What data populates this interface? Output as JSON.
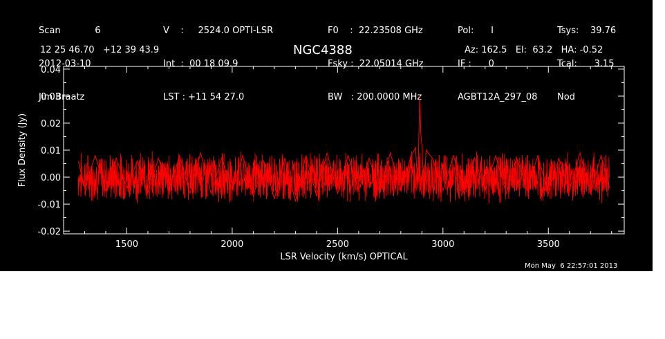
{
  "header": {
    "col1": [
      "Scan            6",
      "2012-03-10",
      "Jim Braatz"
    ],
    "col2": [
      "V    :     2524.0 OPTI-LSR",
      "Int  :  00 18 09.9",
      "LST : +11 54 27.0"
    ],
    "col3": [
      "F0    :  22.23508 GHz",
      "Fsky :  22.05014 GHz",
      "BW   : 200.0000 MHz"
    ],
    "col4": [
      "Pol:      I",
      "IF :      0",
      "AGBT12A_297_08"
    ],
    "col5": [
      "Tsys:    39.76",
      "Tcal:      3.15",
      "Nod"
    ]
  },
  "source": "NGC4388",
  "coords": "12 25 46.70   +12 39 43.9",
  "azel": "Az: 162.5   El:  63.2   HA: -0.52",
  "timestamp": "Mon May  6 22:57:01 2013",
  "colors": {
    "background": "#000000",
    "axes": "#ffffff",
    "trace": "#ff0000"
  },
  "chart_data": {
    "type": "line",
    "xlabel": "LSR Velocity (km/s) OPTICAL",
    "ylabel": "Flux Density (Jy)",
    "xlim": [
      1200,
      3860
    ],
    "ylim": [
      -0.021,
      0.041
    ],
    "xticks": [
      1500,
      2000,
      2500,
      3000,
      3500
    ],
    "xtick_labels": [
      "1500",
      "2000",
      "2500",
      "3000",
      "3500"
    ],
    "yticks": [
      -0.02,
      -0.01,
      0.0,
      0.01,
      0.02,
      0.03,
      0.04
    ],
    "ytick_labels": [
      "-0.02",
      "-0.01",
      "0.00",
      "0.01",
      "0.02",
      "0.03",
      "0.04"
    ],
    "grid": false,
    "series": [
      {
        "x": [
          1270,
          1300,
          1350,
          1400,
          1450,
          1500,
          1550,
          1600,
          1650,
          1700,
          1750,
          1800,
          1850,
          1900,
          1950,
          2000,
          2050,
          2100,
          2150,
          2200,
          2250,
          2300,
          2350,
          2400,
          2450,
          2500,
          2550,
          2600,
          2650,
          2700,
          2750,
          2800,
          2850,
          2870,
          2880,
          2890,
          2895,
          2900,
          2910,
          2920,
          2950,
          3000,
          3050,
          3100,
          3150,
          3200,
          3250,
          3300,
          3350,
          3400,
          3450,
          3500,
          3550,
          3600,
          3650,
          3700,
          3750,
          3790
        ],
        "y": [
          0.006,
          -0.004,
          0.008,
          -0.005,
          0.007,
          -0.004,
          0.006,
          -0.006,
          0.007,
          -0.005,
          0.008,
          -0.006,
          0.009,
          -0.006,
          0.007,
          -0.005,
          0.008,
          -0.007,
          0.006,
          -0.008,
          0.007,
          -0.009,
          0.008,
          -0.007,
          0.009,
          -0.006,
          0.008,
          -0.005,
          0.007,
          -0.006,
          0.009,
          -0.005,
          0.008,
          0.011,
          -0.004,
          0.03,
          0.016,
          0.012,
          -0.006,
          0.01,
          0.007,
          -0.005,
          0.008,
          -0.006,
          0.007,
          -0.005,
          0.008,
          -0.006,
          0.007,
          -0.005,
          0.008,
          -0.006,
          0.007,
          -0.005,
          0.009,
          -0.006,
          0.008,
          -0.004
        ]
      }
    ]
  }
}
